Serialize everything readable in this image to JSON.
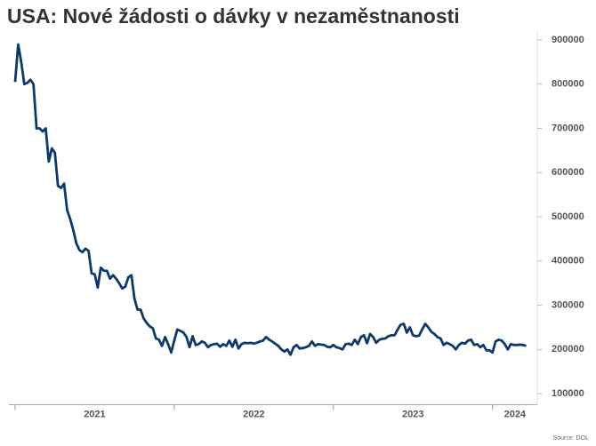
{
  "chart_data": {
    "type": "line",
    "title": "USA: Nové žádosti o dávky v nezaměstnanosti",
    "source": "Source: DOL",
    "categories": [
      "2021",
      null,
      null,
      null,
      null,
      null,
      null,
      null,
      null,
      null,
      null,
      null,
      null,
      null,
      null,
      null,
      null,
      null,
      null,
      null,
      null,
      null,
      null,
      null,
      null,
      null,
      null,
      null,
      null,
      null,
      null,
      null,
      null,
      null,
      null,
      null,
      null,
      null,
      null,
      null,
      null,
      null,
      null,
      null,
      null,
      null,
      null,
      null,
      null,
      null,
      null,
      null,
      "2022",
      null,
      null,
      null,
      null,
      null,
      null,
      null,
      null,
      null,
      null,
      null,
      null,
      null,
      null,
      null,
      null,
      null,
      null,
      null,
      null,
      null,
      null,
      null,
      null,
      null,
      null,
      null,
      null,
      null,
      null,
      null,
      null,
      null,
      null,
      null,
      null,
      null,
      null,
      null,
      null,
      null,
      null,
      null,
      null,
      null,
      null,
      null,
      null,
      null,
      null,
      null,
      "2023",
      null,
      null,
      null,
      null,
      null,
      null,
      null,
      null,
      null,
      null,
      null,
      null,
      null,
      null,
      null,
      null,
      null,
      null,
      null,
      null,
      null,
      null,
      null,
      null,
      null,
      null,
      null,
      null,
      null,
      null,
      null,
      null,
      null,
      null,
      null,
      null,
      null,
      null,
      null,
      null,
      null,
      null,
      null,
      null,
      null,
      null,
      null,
      null,
      null,
      null,
      null,
      "2024",
      null,
      null,
      null,
      null,
      null,
      null,
      null,
      null,
      null,
      null,
      null
    ],
    "series": [
      {
        "name": "Nové žádosti",
        "color": "#0d3a6b",
        "values": [
          805000,
          890000,
          850000,
          800000,
          803000,
          810000,
          800000,
          700000,
          700000,
          693000,
          700000,
          625000,
          655000,
          645000,
          570000,
          565000,
          575000,
          515000,
          495000,
          470000,
          440000,
          425000,
          420000,
          428000,
          423000,
          372000,
          370000,
          340000,
          385000,
          378000,
          378000,
          360000,
          368000,
          360000,
          350000,
          338000,
          342000,
          363000,
          368000,
          315000,
          290000,
          290000,
          270000,
          260000,
          252000,
          248000,
          225000,
          222000,
          208000,
          228000,
          212000,
          193000,
          220000,
          245000,
          242000,
          238000,
          228000,
          205000,
          230000,
          210000,
          212000,
          218000,
          215000,
          205000,
          210000,
          212000,
          213000,
          206000,
          212000,
          208000,
          220000,
          206000,
          222000,
          202000,
          212000,
          215000,
          214000,
          215000,
          213000,
          215000,
          218000,
          220000,
          228000,
          222000,
          218000,
          213000,
          208000,
          200000,
          195000,
          200000,
          188000,
          205000,
          210000,
          202000,
          203000,
          205000,
          208000,
          218000,
          208000,
          212000,
          211000,
          210000,
          206000,
          205000,
          210000,
          205000,
          203000,
          200000,
          212000,
          213000,
          210000,
          222000,
          212000,
          228000,
          232000,
          214000,
          235000,
          228000,
          215000,
          222000,
          224000,
          225000,
          230000,
          232000,
          232000,
          245000,
          256000,
          258000,
          238000,
          250000,
          232000,
          230000,
          231000,
          245000,
          258000,
          250000,
          240000,
          235000,
          228000,
          225000,
          210000,
          215000,
          212000,
          208000,
          200000,
          210000,
          215000,
          213000,
          220000,
          222000,
          210000,
          212000,
          205000,
          210000,
          198000,
          198000,
          193000,
          218000,
          222000,
          220000,
          212000,
          200000,
          212000,
          210000,
          210000,
          211000,
          210000,
          208000
        ]
      }
    ],
    "ylim": [
      75000,
      910000
    ],
    "yticks": [
      100000,
      200000,
      300000,
      400000,
      500000,
      600000,
      700000,
      800000,
      900000
    ],
    "y_axis_side": "right"
  }
}
